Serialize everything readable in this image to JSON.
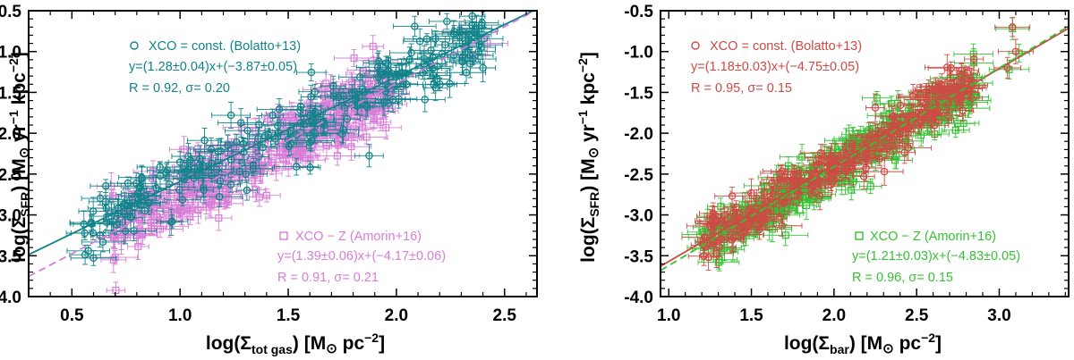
{
  "colors": {
    "teal": "#11848a",
    "magenta": "#d87cd8",
    "red": "#cf4a44",
    "green": "#33c233",
    "axis": "#000000"
  },
  "chart_data": [
    {
      "type": "scatter",
      "panel": "left",
      "xlabel": "log(Σtot gas) [M⊙ pc−2]",
      "ylabel": "log(ΣSFR) [M⊙ yr−1 kpc−2]",
      "xlim": [
        0.3,
        2.65
      ],
      "ylim": [
        -4.0,
        -0.5
      ],
      "xticks": [
        "0.5",
        "1.0",
        "1.5",
        "2.0",
        "2.5"
      ],
      "yticks": [
        "-4.0",
        "-3.5",
        "-3.0",
        "-2.5",
        "-2.0",
        "-1.5",
        "-1.0",
        "-0.5"
      ],
      "series": [
        {
          "name": "XCO = const. (Bolatto+13)",
          "color_key": "teal",
          "marker": "circle",
          "fit": {
            "slope": 1.28,
            "intercept": -3.87,
            "style": "solid"
          },
          "legend_lines": [
            "XCO = const. (Bolatto+13)",
            "y=(1.28±0.04)x+(−3.87±0.05)",
            "R = 0.92, σ= 0.20"
          ],
          "n_points": 230,
          "x_range": [
            0.55,
            2.42
          ],
          "scatter": 0.2,
          "outliers": [
            [
              2.35,
              -0.68
            ],
            [
              2.38,
              -1.0
            ],
            [
              2.4,
              -1.2
            ],
            [
              2.32,
              -0.9
            ]
          ]
        },
        {
          "name": "XCO − Z (Amorin+16)",
          "color_key": "magenta",
          "marker": "square",
          "fit": {
            "slope": 1.39,
            "intercept": -4.17,
            "style": "dashed"
          },
          "legend_lines": [
            "XCO − Z (Amorin+16)",
            "y=(1.39±0.06)x+(−4.17±0.06)",
            "R = 0.91, σ= 0.21"
          ],
          "n_points": 320,
          "x_range": [
            0.68,
            1.98
          ],
          "scatter": 0.21,
          "outliers": [
            [
              2.3,
              -0.75
            ],
            [
              2.35,
              -1.05
            ],
            [
              2.42,
              -0.9
            ]
          ]
        }
      ]
    },
    {
      "type": "scatter",
      "panel": "right",
      "xlabel": "log(Σbar) [M⊙ pc−2]",
      "ylabel": "log(ΣSFR) [M⊙ yr−1 kpc−2]",
      "xlim": [
        0.95,
        3.42
      ],
      "ylim": [
        -4.0,
        -0.5
      ],
      "xticks": [
        "1.0",
        "1.5",
        "2.0",
        "2.5",
        "3.0"
      ],
      "yticks": [
        "-4.0",
        "-3.5",
        "-3.0",
        "-2.5",
        "-2.0",
        "-1.5",
        "-1.0",
        "-0.5"
      ],
      "series": [
        {
          "name": "XCO = const. (Bolatto+13)",
          "color_key": "red",
          "marker": "circle",
          "fit": {
            "slope": 1.18,
            "intercept": -4.75,
            "style": "solid"
          },
          "legend_lines": [
            "XCO = const. (Bolatto+13)",
            "y=(1.18±0.03)x+(−4.75±0.05)",
            "R = 0.95, σ= 0.15"
          ],
          "n_points": 230,
          "x_range": [
            1.2,
            2.85
          ],
          "scatter": 0.15,
          "outliers": [
            [
              3.08,
              -0.7
            ],
            [
              3.1,
              -1.0
            ],
            [
              3.05,
              -1.2
            ]
          ]
        },
        {
          "name": "XCO − Z (Amorin+16)",
          "color_key": "green",
          "marker": "square",
          "fit": {
            "slope": 1.21,
            "intercept": -4.83,
            "style": "dashed"
          },
          "legend_lines": [
            "XCO − Z (Amorin+16)",
            "y=(1.21±0.03)x+(−4.83±0.05)",
            "R = 0.96, σ= 0.15"
          ],
          "n_points": 340,
          "x_range": [
            1.2,
            2.85
          ],
          "scatter": 0.15,
          "outliers": [
            [
              3.08,
              -0.72
            ],
            [
              3.12,
              -1.02
            ],
            [
              3.06,
              -1.22
            ]
          ]
        }
      ]
    }
  ]
}
